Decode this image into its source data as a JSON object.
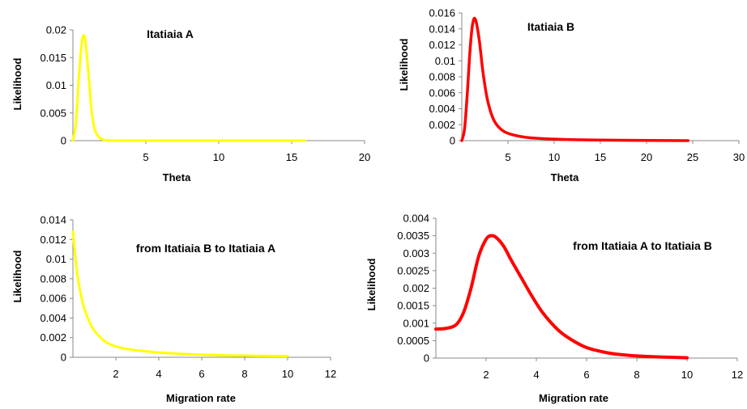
{
  "chart_data": [
    {
      "type": "line",
      "title": "Itatiaia A",
      "xlabel": "Theta",
      "ylabel": "Likelihood",
      "xlim": [
        0,
        20
      ],
      "ylim": [
        0,
        0.02
      ],
      "xticks": [
        "5",
        "10",
        "15",
        "20"
      ],
      "yticks": [
        "0",
        "0.005",
        "0.01",
        "0.015",
        "0.02"
      ],
      "color": "#ffff00",
      "series": [
        {
          "x": [
            0.0,
            0.2,
            0.4,
            0.6,
            0.75,
            0.9,
            1.1,
            1.3,
            1.5,
            1.8,
            2.2,
            3,
            5,
            8,
            12,
            15.9
          ],
          "y": [
            0.0,
            0.003,
            0.011,
            0.0175,
            0.019,
            0.017,
            0.011,
            0.005,
            0.002,
            0.0006,
            0.0001,
            0.0,
            0.0,
            0.0,
            0.0,
            0.0
          ]
        }
      ]
    },
    {
      "type": "line",
      "title": "Itatiaia B",
      "xlabel": "Theta",
      "ylabel": "Likelihood",
      "xlim": [
        0,
        30
      ],
      "ylim": [
        0,
        0.016
      ],
      "xticks": [
        "5",
        "10",
        "15",
        "20",
        "25",
        "30"
      ],
      "yticks": [
        "0",
        "0.002",
        "0.004",
        "0.006",
        "0.008",
        "0.01",
        "0.012",
        "0.014",
        "0.016"
      ],
      "color": "#ff0000",
      "series": [
        {
          "x": [
            0.0,
            0.3,
            0.6,
            0.9,
            1.2,
            1.5,
            1.9,
            2.3,
            2.8,
            3.5,
            4.5,
            6,
            8,
            12,
            17,
            24.5
          ],
          "y": [
            0.0,
            0.0015,
            0.006,
            0.0115,
            0.0148,
            0.0151,
            0.0125,
            0.0085,
            0.005,
            0.0025,
            0.0012,
            0.0006,
            0.0003,
            0.00012,
            5e-05,
            0.0
          ]
        }
      ]
    },
    {
      "type": "line",
      "title": "from Itatiaia B to Itatiaia A",
      "xlabel": "Migration rate",
      "ylabel": "Likelihood",
      "xlim": [
        0,
        12
      ],
      "ylim": [
        0,
        0.014
      ],
      "xticks": [
        "2",
        "4",
        "6",
        "8",
        "10",
        "12"
      ],
      "yticks": [
        "0",
        "0.002",
        "0.004",
        "0.006",
        "0.008",
        "0.01",
        "0.012",
        "0.014"
      ],
      "color": "#ffff00",
      "series": [
        {
          "x": [
            0.0,
            0.1,
            0.25,
            0.5,
            0.75,
            1.0,
            1.5,
            2.0,
            2.5,
            3.0,
            4.0,
            5.0,
            6.0,
            7.0,
            8.0,
            9.0,
            10.0
          ],
          "y": [
            0.0128,
            0.0105,
            0.0078,
            0.0052,
            0.0037,
            0.0027,
            0.0016,
            0.0011,
            0.00085,
            0.0007,
            0.00048,
            0.00035,
            0.00026,
            0.0002,
            0.00016,
            0.00013,
            0.00011
          ]
        }
      ]
    },
    {
      "type": "line",
      "title": "from Itatiaia A to Itatiaia B",
      "xlabel": "Migration rate",
      "ylabel": "Likelihood",
      "xlim": [
        0,
        12
      ],
      "ylim": [
        0,
        0.004
      ],
      "xticks": [
        "2",
        "4",
        "6",
        "8",
        "10",
        "12"
      ],
      "yticks": [
        "0",
        "0.0005",
        "0.001",
        "0.0015",
        "0.002",
        "0.0025",
        "0.003",
        "0.0035",
        "0.004"
      ],
      "color": "#ff0000",
      "series": [
        {
          "x": [
            0.0,
            0.4,
            0.8,
            1.1,
            1.4,
            1.7,
            2.0,
            2.2,
            2.4,
            2.7,
            3.0,
            3.4,
            3.8,
            4.2,
            4.6,
            5.0,
            5.5,
            6.0,
            6.5,
            7.0,
            7.5,
            8.0,
            9.0,
            10.0
          ],
          "y": [
            0.00083,
            0.00085,
            0.00095,
            0.0013,
            0.002,
            0.0029,
            0.0034,
            0.0035,
            0.00345,
            0.0032,
            0.0028,
            0.0023,
            0.0018,
            0.00135,
            0.001,
            0.00072,
            0.00048,
            0.0003,
            0.0002,
            0.00013,
            9e-05,
            6e-05,
            3e-05,
            1e-05
          ]
        }
      ]
    }
  ]
}
